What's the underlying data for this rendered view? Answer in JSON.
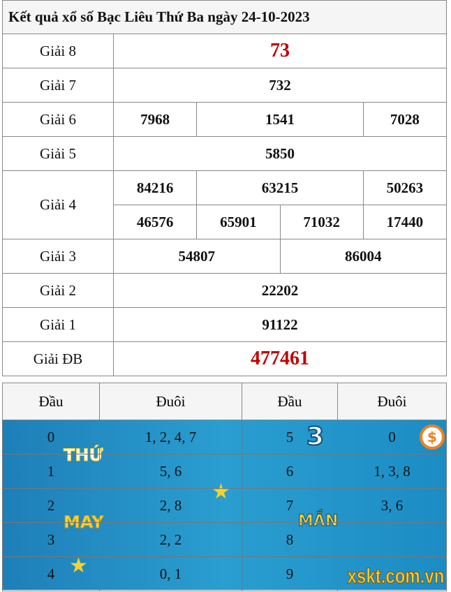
{
  "title": "Kết quả xổ số Bạc Liêu Thứ Ba ngày 24-10-2023",
  "prizes": {
    "g8": {
      "label": "Giải 8",
      "values": [
        "73"
      ]
    },
    "g7": {
      "label": "Giải 7",
      "values": [
        "732"
      ]
    },
    "g6": {
      "label": "Giải 6",
      "values": [
        "7968",
        "1541",
        "7028"
      ]
    },
    "g5": {
      "label": "Giải 5",
      "values": [
        "5850"
      ]
    },
    "g4": {
      "label": "Giải 4",
      "values": [
        "84216",
        "63215",
        "50263",
        "46576",
        "65901",
        "71032",
        "17440"
      ]
    },
    "g3": {
      "label": "Giải 3",
      "values": [
        "54807",
        "86004"
      ]
    },
    "g2": {
      "label": "Giải 2",
      "values": [
        "22202"
      ]
    },
    "g1": {
      "label": "Giải 1",
      "values": [
        "91122"
      ]
    },
    "db": {
      "label": "Giải ĐB",
      "values": [
        "477461"
      ]
    }
  },
  "loto": {
    "headers": [
      "Đầu",
      "Đuôi",
      "Đầu",
      "Đuôi"
    ],
    "rows": [
      [
        "0",
        "1, 2, 4, 7",
        "5",
        "0"
      ],
      [
        "1",
        "5, 6",
        "6",
        "1, 3, 8"
      ],
      [
        "2",
        "2, 8",
        "7",
        "3, 6"
      ],
      [
        "3",
        "2, 2",
        "8",
        ""
      ],
      [
        "4",
        "0, 1",
        "9",
        ""
      ]
    ]
  },
  "banner": {
    "line1": "THỨ",
    "num": "3",
    "line2a": "MAY",
    "line2b": "MẮN",
    "brand": "xskt.com.vn"
  },
  "colors": {
    "special": "#c00000",
    "banner": "#2a9ed0",
    "accent": "#f7d12e"
  }
}
